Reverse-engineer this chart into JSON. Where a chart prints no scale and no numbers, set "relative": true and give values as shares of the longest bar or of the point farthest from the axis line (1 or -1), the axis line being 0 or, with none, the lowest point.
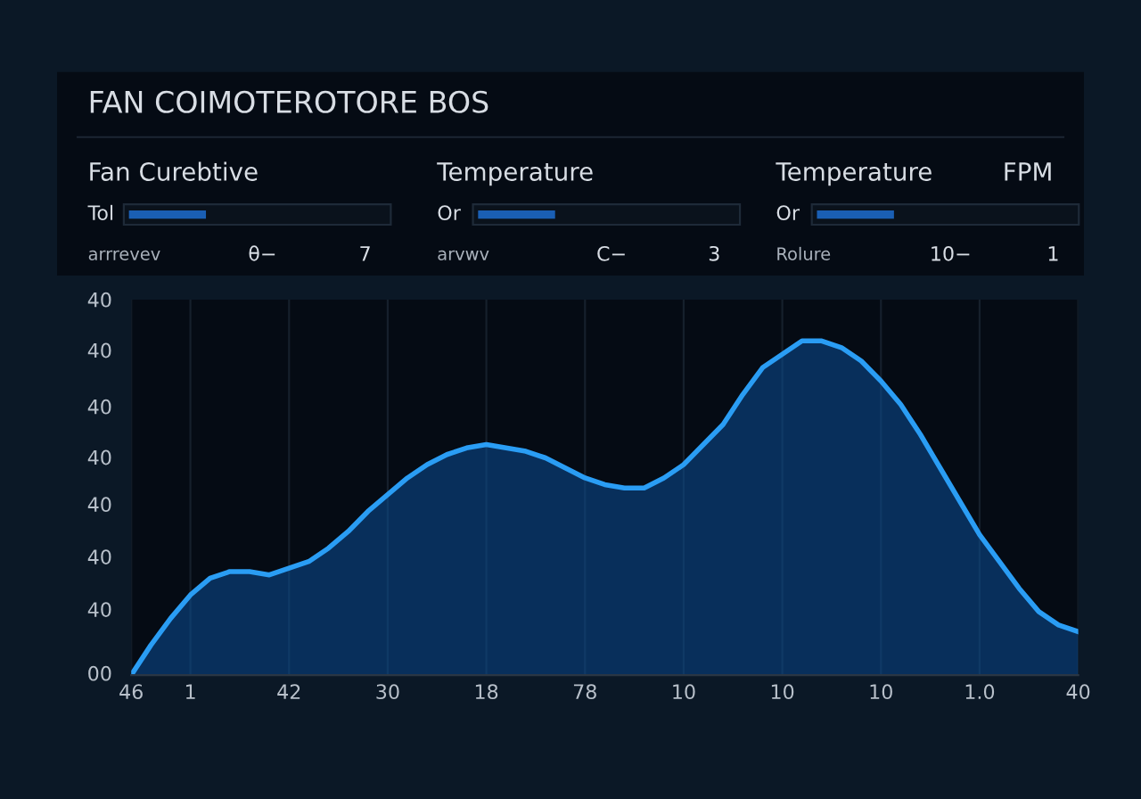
{
  "chart_data": [
    {
      "type": "other",
      "title": "FAN COIMOTEROTORE BOS",
      "annotations": [
        "Fan Curebtive",
        "Tol",
        "arrrevev",
        "θ−",
        "7",
        "Temperature",
        "Or",
        "arvwv",
        "C−",
        "3",
        "Temperature",
        "Or",
        "Rolure",
        "10−",
        "1",
        "FPM"
      ]
    },
    {
      "type": "area",
      "relative": true,
      "grid": "x",
      "categories": [
        "46",
        null,
        null,
        "1",
        null,
        null,
        null,
        null,
        "42",
        null,
        null,
        null,
        null,
        "30",
        null,
        null,
        null,
        null,
        "18",
        null,
        null,
        null,
        null,
        "78",
        null,
        null,
        null,
        null,
        "10",
        null,
        null,
        null,
        null,
        "10",
        null,
        null,
        null,
        null,
        "10",
        null,
        null,
        null,
        null,
        "1.0",
        null,
        null,
        null,
        null,
        "40"
      ],
      "annotations": [
        "40",
        "40",
        "40",
        "40",
        "40",
        "40",
        "40",
        "00"
      ],
      "series": [
        {
          "color": "#2a9df4",
          "values": [
            0,
            0.09,
            0.17,
            0.24,
            0.29,
            0.31,
            0.31,
            0.3,
            0.32,
            0.34,
            0.38,
            0.43,
            0.49,
            0.54,
            0.59,
            0.63,
            0.66,
            0.68,
            0.69,
            0.68,
            0.67,
            0.65,
            0.62,
            0.59,
            0.57,
            0.56,
            0.56,
            0.59,
            0.63,
            0.69,
            0.75,
            0.84,
            0.92,
            0.96,
            1,
            1,
            0.98,
            0.94,
            0.88,
            0.81,
            0.72,
            0.62,
            0.52,
            0.42,
            0.34,
            0.26,
            0.19,
            0.15,
            0.13
          ]
        }
      ]
    }
  ]
}
